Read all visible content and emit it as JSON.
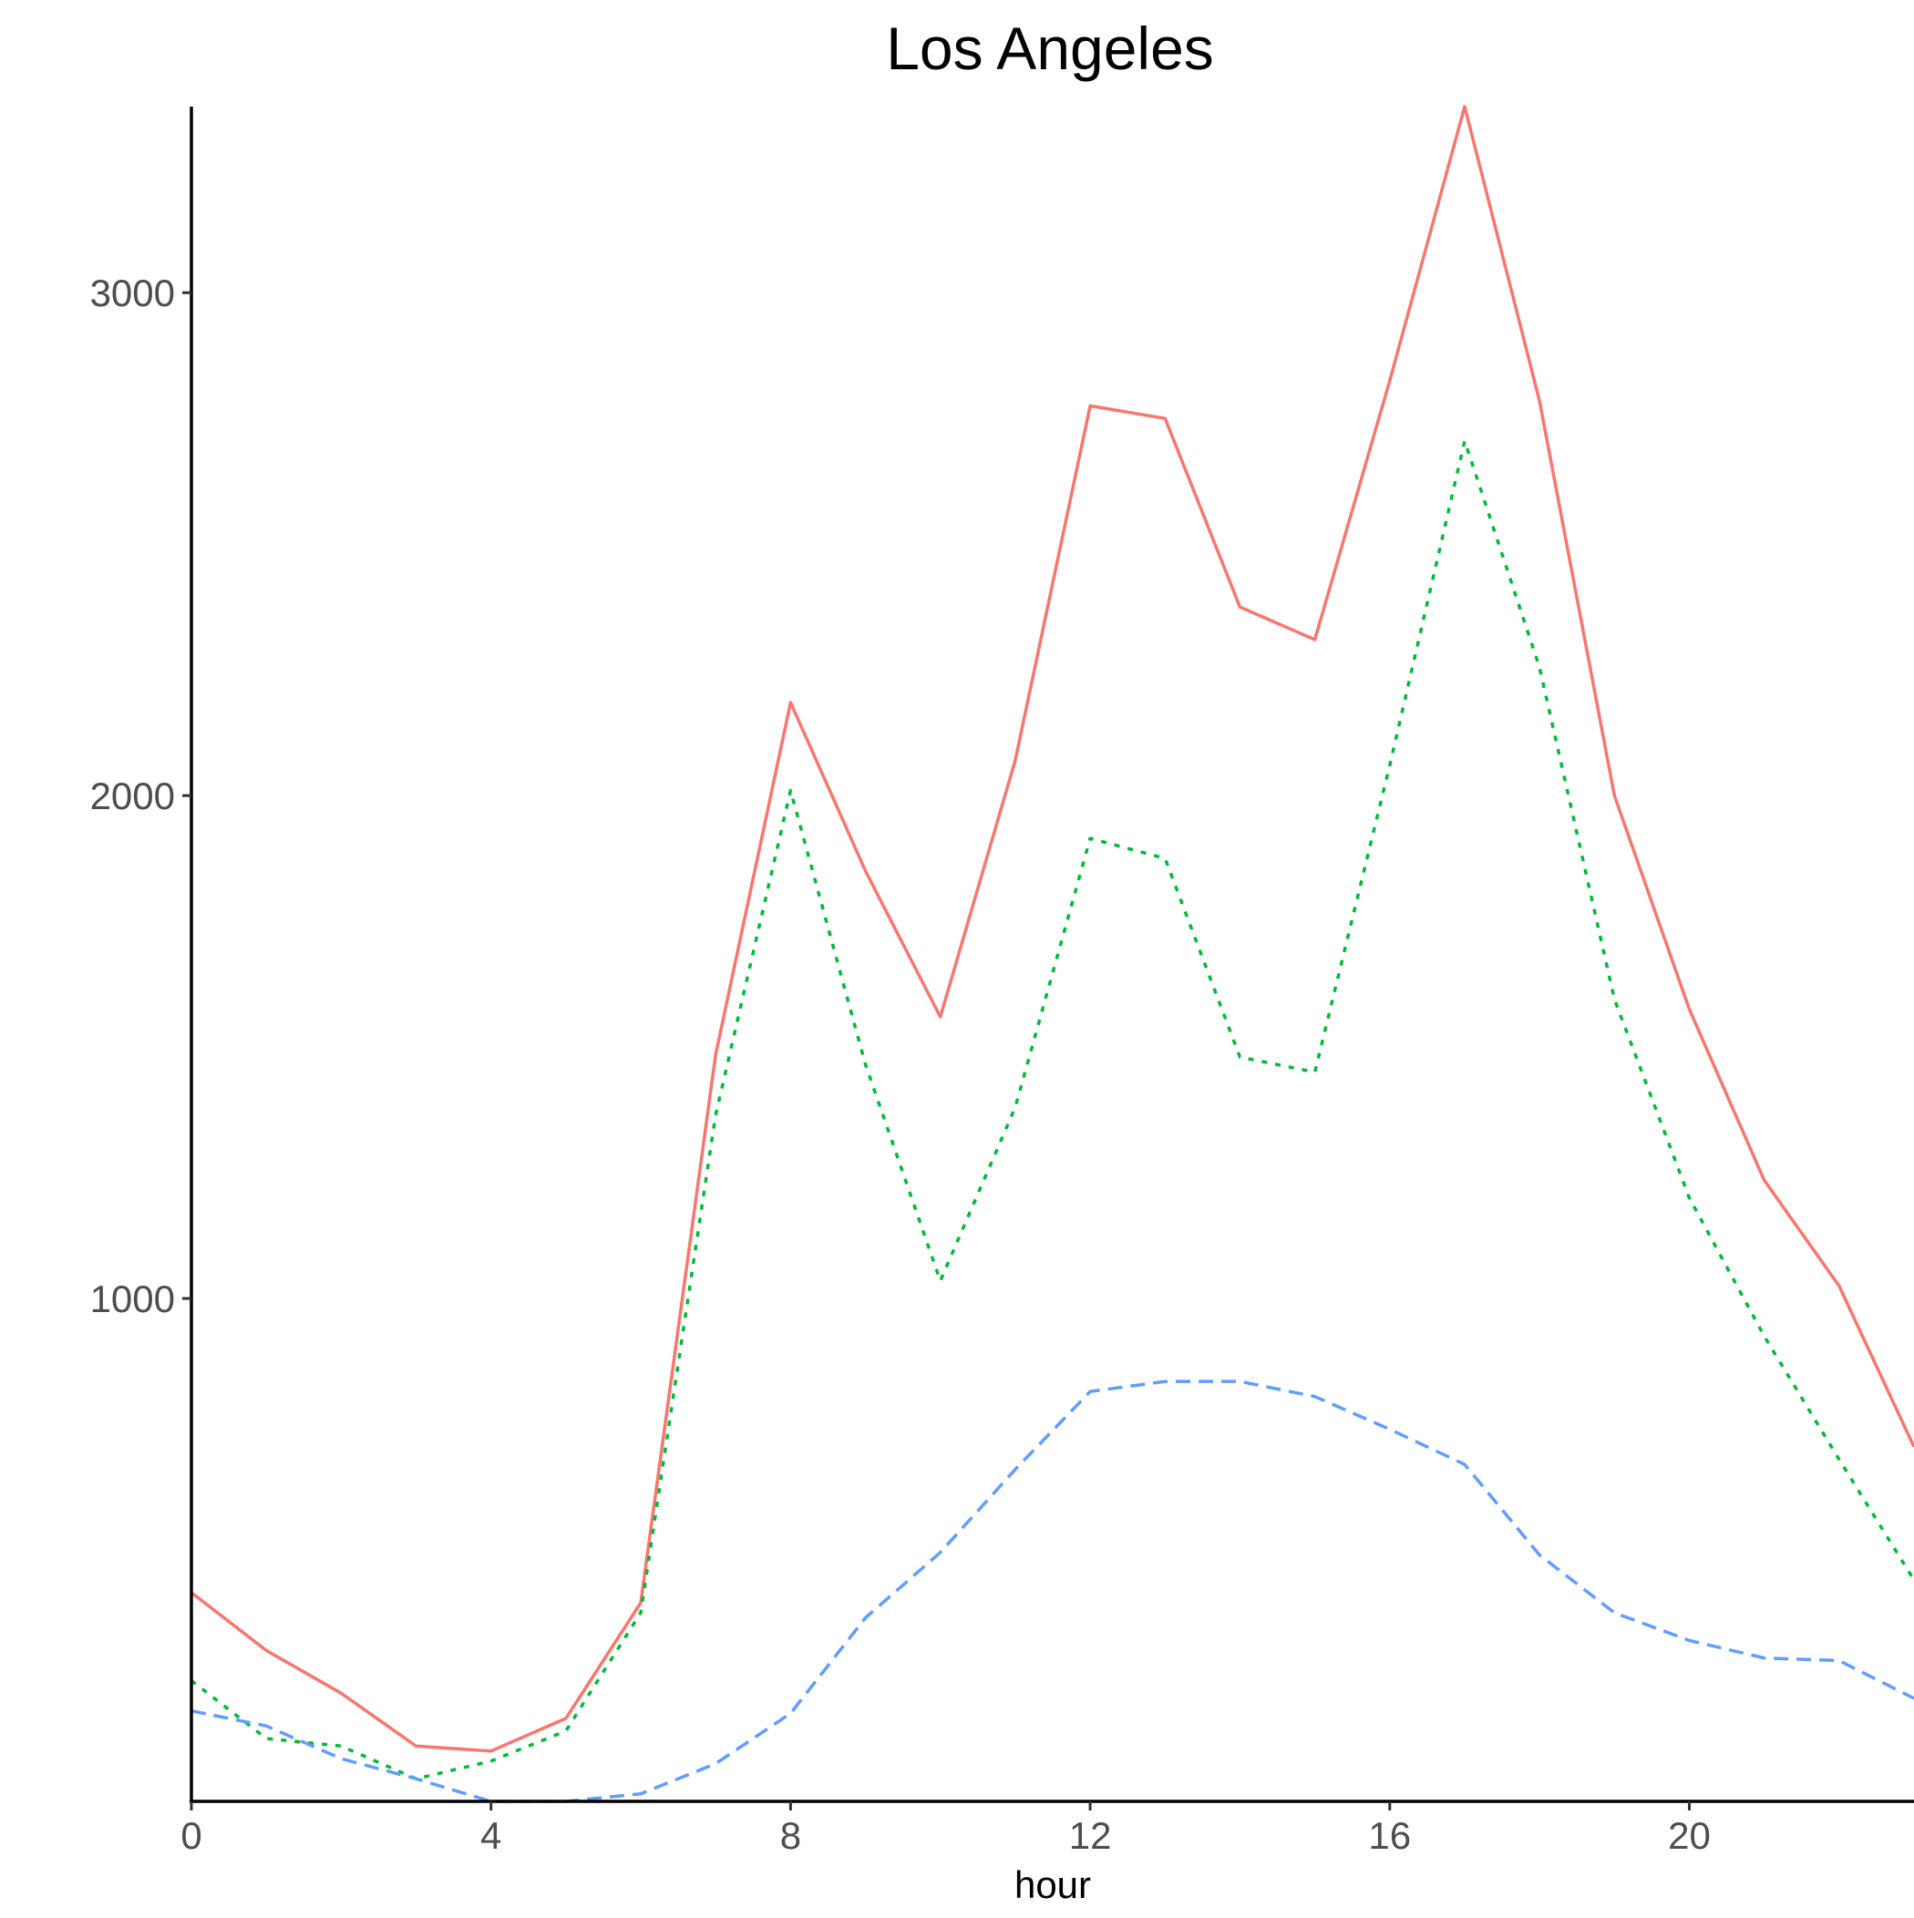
{
  "chart_data": {
    "type": "line",
    "title": "Los Angeles",
    "xlabel": "hour",
    "ylabel": "",
    "xlim": [
      0,
      23
    ],
    "ylim": [
      0,
      3370
    ],
    "xticks": [
      0,
      4,
      8,
      12,
      16,
      20
    ],
    "yticks": [
      1000,
      2000,
      3000
    ],
    "grid": false,
    "legend": "none",
    "x": [
      0,
      1,
      2,
      3,
      4,
      5,
      6,
      7,
      8,
      9,
      10,
      11,
      12,
      13,
      14,
      15,
      16,
      17,
      18,
      19,
      20,
      21,
      22,
      23
    ],
    "series": [
      {
        "color": "#F8766D",
        "dash": "solid",
        "values": [
          415,
          300,
          215,
          110,
          100,
          165,
          395,
          1485,
          2185,
          1850,
          1560,
          2070,
          2775,
          2750,
          2375,
          2310,
          2825,
          3370,
          2785,
          2000,
          1575,
          1235,
          1025,
          705
        ]
      },
      {
        "color": "#00BA38",
        "dash": "dotted",
        "values": [
          240,
          125,
          110,
          45,
          80,
          140,
          375,
          1365,
          2010,
          1465,
          1035,
          1380,
          1915,
          1875,
          1480,
          1450,
          2060,
          2705,
          2255,
          1595,
          1200,
          925,
          680,
          440
        ]
      },
      {
        "color": "#619CFF",
        "dash": "dashed",
        "values": [
          180,
          150,
          85,
          45,
          0,
          0,
          15,
          75,
          175,
          365,
          495,
          660,
          815,
          835,
          835,
          805,
          740,
          670,
          490,
          375,
          320,
          285,
          280,
          205
        ]
      }
    ]
  }
}
